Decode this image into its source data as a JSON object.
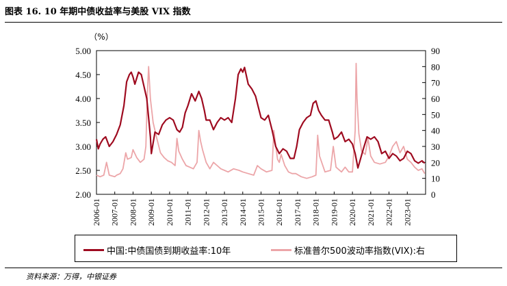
{
  "figure": {
    "title": "图表 16. 10 年期中债收益率与美股 VIX 指数",
    "source": "资料来源：万得，中银证券"
  },
  "chart_data": {
    "type": "line",
    "unit_label": "（%）",
    "y_left": {
      "lim": [
        2.0,
        5.0
      ],
      "ticks": [
        "2.00",
        "2.50",
        "3.00",
        "3.50",
        "4.00",
        "4.50",
        "5.00"
      ]
    },
    "y_right": {
      "lim": [
        0,
        90
      ],
      "ticks": [
        "0",
        "10",
        "20",
        "30",
        "40",
        "50",
        "60",
        "70",
        "80",
        "90"
      ]
    },
    "x_range": [
      2006.0,
      2024.0
    ],
    "x_ticks": [
      "2006-01",
      "2007-01",
      "2008-01",
      "2009-01",
      "2010-01",
      "2011-01",
      "2012-01",
      "2013-01",
      "2014-01",
      "2015-01",
      "2016-01",
      "2017-01",
      "2018-01",
      "2019-01",
      "2020-01",
      "2021-01",
      "2022-01",
      "2023-01"
    ],
    "series": [
      {
        "name": "中国:中债国债到期收益率:10年",
        "axis": "left",
        "color": "#9e0a1f",
        "x": [
          2006.0,
          2006.1,
          2006.2,
          2006.35,
          2006.5,
          2006.7,
          2006.9,
          2007.1,
          2007.3,
          2007.5,
          2007.65,
          2007.8,
          2007.9,
          2008.0,
          2008.1,
          2008.3,
          2008.45,
          2008.6,
          2008.75,
          2008.85,
          2008.95,
          2009.0,
          2009.2,
          2009.4,
          2009.6,
          2009.8,
          2010.0,
          2010.2,
          2010.4,
          2010.55,
          2010.7,
          2010.85,
          2011.0,
          2011.2,
          2011.4,
          2011.6,
          2011.75,
          2011.9,
          2012.0,
          2012.2,
          2012.4,
          2012.6,
          2012.8,
          2013.0,
          2013.2,
          2013.4,
          2013.5,
          2013.6,
          2013.75,
          2013.9,
          2014.0,
          2014.1,
          2014.3,
          2014.5,
          2014.7,
          2014.9,
          2015.0,
          2015.2,
          2015.4,
          2015.6,
          2015.8,
          2016.0,
          2016.2,
          2016.4,
          2016.6,
          2016.8,
          2016.95,
          2017.1,
          2017.3,
          2017.5,
          2017.7,
          2017.85,
          2018.0,
          2018.15,
          2018.3,
          2018.5,
          2018.7,
          2018.9,
          2019.0,
          2019.2,
          2019.4,
          2019.6,
          2019.8,
          2020.0,
          2020.15,
          2020.3,
          2020.45,
          2020.6,
          2020.8,
          2021.0,
          2021.2,
          2021.4,
          2021.6,
          2021.8,
          2022.0,
          2022.2,
          2022.4,
          2022.6,
          2022.8,
          2023.0,
          2023.2,
          2023.4,
          2023.6,
          2023.8,
          2023.95
        ],
        "values": [
          3.15,
          2.95,
          3.05,
          3.15,
          3.2,
          3.0,
          3.1,
          3.25,
          3.45,
          3.85,
          4.35,
          4.5,
          4.55,
          4.45,
          4.3,
          4.55,
          4.5,
          4.25,
          4.0,
          3.6,
          3.2,
          2.85,
          3.3,
          3.25,
          3.45,
          3.55,
          3.6,
          3.55,
          3.35,
          3.3,
          3.4,
          3.7,
          3.85,
          4.1,
          3.95,
          4.15,
          4.0,
          3.75,
          3.55,
          3.55,
          3.35,
          3.5,
          3.6,
          3.55,
          3.6,
          3.5,
          3.75,
          4.0,
          4.5,
          4.62,
          4.55,
          4.65,
          4.3,
          4.2,
          4.05,
          3.75,
          3.6,
          3.55,
          3.65,
          3.35,
          3.0,
          2.85,
          2.95,
          2.9,
          2.75,
          2.75,
          3.0,
          3.35,
          3.5,
          3.6,
          3.65,
          3.9,
          3.95,
          3.75,
          3.65,
          3.55,
          3.55,
          3.3,
          3.15,
          3.2,
          3.3,
          3.1,
          3.15,
          3.05,
          2.85,
          2.55,
          2.75,
          2.95,
          3.2,
          3.15,
          3.2,
          3.1,
          2.85,
          2.9,
          2.75,
          2.85,
          2.8,
          2.7,
          2.75,
          2.9,
          2.85,
          2.7,
          2.65,
          2.7,
          2.65
        ]
      },
      {
        "name": "标准普尔500波动率指数(VIX):右",
        "axis": "right",
        "color": "#eca5a8",
        "x": [
          2006.0,
          2006.2,
          2006.4,
          2006.55,
          2006.7,
          2007.0,
          2007.1,
          2007.3,
          2007.45,
          2007.6,
          2007.7,
          2007.9,
          2008.0,
          2008.2,
          2008.4,
          2008.6,
          2008.7,
          2008.78,
          2008.85,
          2008.95,
          2009.1,
          2009.3,
          2009.5,
          2009.7,
          2009.9,
          2010.1,
          2010.3,
          2010.4,
          2010.5,
          2010.7,
          2010.9,
          2011.1,
          2011.3,
          2011.5,
          2011.6,
          2011.7,
          2011.8,
          2012.0,
          2012.2,
          2012.4,
          2012.6,
          2012.8,
          2013.0,
          2013.2,
          2013.5,
          2013.8,
          2014.0,
          2014.3,
          2014.6,
          2014.8,
          2015.0,
          2015.3,
          2015.6,
          2015.7,
          2015.9,
          2016.0,
          2016.1,
          2016.3,
          2016.5,
          2016.7,
          2016.9,
          2017.2,
          2017.5,
          2017.8,
          2018.0,
          2018.1,
          2018.2,
          2018.5,
          2018.8,
          2018.95,
          2019.1,
          2019.4,
          2019.6,
          2019.8,
          2020.0,
          2020.15,
          2020.2,
          2020.25,
          2020.35,
          2020.5,
          2020.7,
          2020.85,
          2021.0,
          2021.2,
          2021.5,
          2021.8,
          2022.0,
          2022.2,
          2022.4,
          2022.6,
          2022.8,
          2023.0,
          2023.2,
          2023.4,
          2023.6,
          2023.8,
          2023.95
        ],
        "values": [
          12,
          11,
          12,
          20,
          12,
          11,
          12,
          13,
          16,
          26,
          22,
          23,
          28,
          23,
          20,
          22,
          30,
          62,
          80,
          60,
          45,
          35,
          26,
          23,
          21,
          20,
          18,
          35,
          27,
          22,
          18,
          17,
          16,
          20,
          40,
          33,
          28,
          20,
          16,
          20,
          18,
          16,
          15,
          14,
          16,
          15,
          14,
          13,
          12,
          18,
          16,
          14,
          15,
          40,
          22,
          20,
          25,
          18,
          14,
          13,
          13,
          11,
          10,
          11,
          12,
          37,
          24,
          14,
          15,
          30,
          17,
          14,
          17,
          14,
          14,
          40,
          82,
          60,
          38,
          27,
          25,
          35,
          24,
          20,
          19,
          20,
          24,
          30,
          33,
          26,
          30,
          22,
          20,
          17,
          15,
          16,
          13
        ]
      }
    ]
  }
}
